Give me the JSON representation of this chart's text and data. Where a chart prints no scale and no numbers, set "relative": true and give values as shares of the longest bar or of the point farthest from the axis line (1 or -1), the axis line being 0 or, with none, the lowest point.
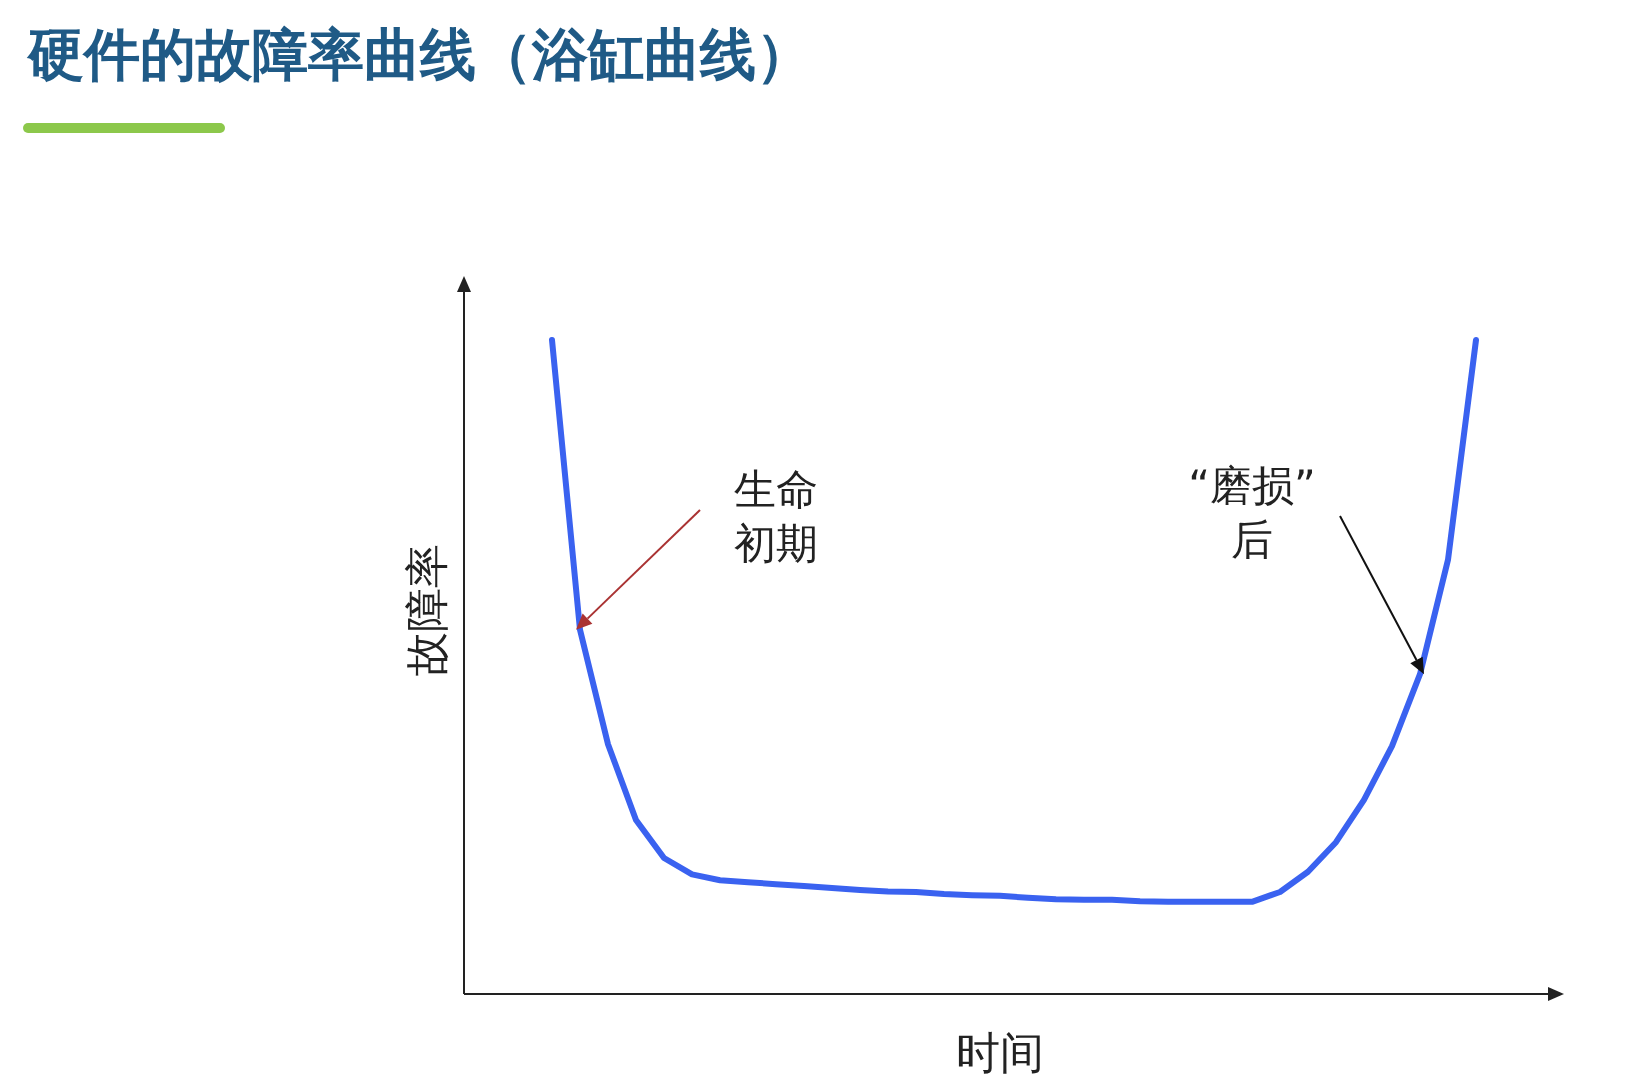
{
  "chart_data": {
    "type": "line",
    "title": "硬件的故障率曲线（浴缸曲线）",
    "xlabel": "时间",
    "ylabel": "故障率",
    "relative": true,
    "categories": [
      null,
      null,
      null,
      null,
      null,
      null,
      null,
      null,
      null,
      null,
      null,
      null,
      null,
      null,
      null,
      null,
      null,
      null,
      null,
      null,
      null,
      null,
      null,
      null,
      null,
      null,
      null,
      null,
      null,
      null,
      null,
      null,
      null,
      null
    ],
    "series": [
      {
        "color": "#3a62f0",
        "values": [
          1,
          0.557,
          0.382,
          0.266,
          0.208,
          0.183,
          0.174,
          0.171,
          0.168,
          0.165,
          0.162,
          0.159,
          0.157,
          0.156,
          0.153,
          0.151,
          0.15,
          0.147,
          0.145,
          0.144,
          0.144,
          0.142,
          0.141,
          0.141,
          0.141,
          0.141,
          0.156,
          0.187,
          0.232,
          0.297,
          0.379,
          0.489,
          0.664,
          1
        ]
      }
    ],
    "annotations": [
      "生命初期",
      "“磨损”后"
    ]
  }
}
